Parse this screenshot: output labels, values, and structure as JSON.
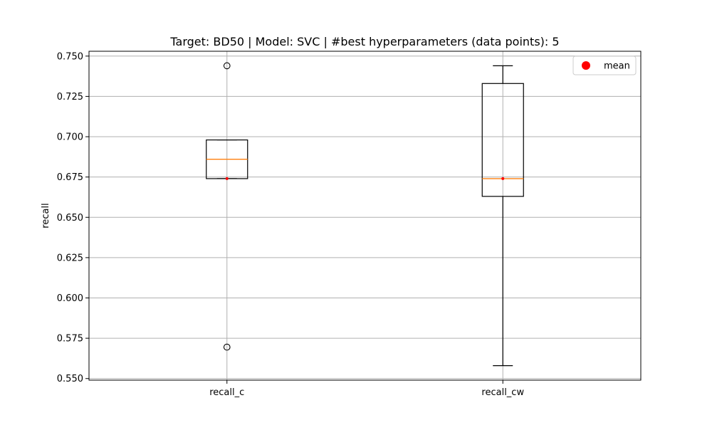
{
  "chart_data": {
    "type": "box",
    "title": "Target: BD50 | Model: SVC | #best hyperparameters (data points): 5",
    "xlabel": "",
    "ylabel": "recall",
    "ylim": [
      0.549,
      0.753
    ],
    "yticks": [
      "0.550",
      "0.575",
      "0.600",
      "0.625",
      "0.650",
      "0.675",
      "0.700",
      "0.725",
      "0.750"
    ],
    "grid": true,
    "legend": {
      "placement": "top-right",
      "entries": [
        {
          "label": "mean",
          "marker": "circle",
          "color": "#ff0000"
        }
      ]
    },
    "colors": {
      "median": "#ff7f0e",
      "mean": "#ff0000",
      "box": "#000000",
      "grid": "#b0b0b0"
    },
    "categories": [
      "recall_c",
      "recall_cw"
    ],
    "boxes": [
      {
        "label": "recall_c",
        "whisker_low": 0.674,
        "q1": 0.674,
        "median": 0.686,
        "q3": 0.698,
        "whisker_high": 0.698,
        "mean": 0.674,
        "outliers": [
          0.744,
          0.5695
        ]
      },
      {
        "label": "recall_cw",
        "whisker_low": 0.558,
        "q1": 0.663,
        "median": 0.674,
        "q3": 0.733,
        "whisker_high": 0.744,
        "mean": 0.674,
        "outliers": []
      }
    ]
  }
}
